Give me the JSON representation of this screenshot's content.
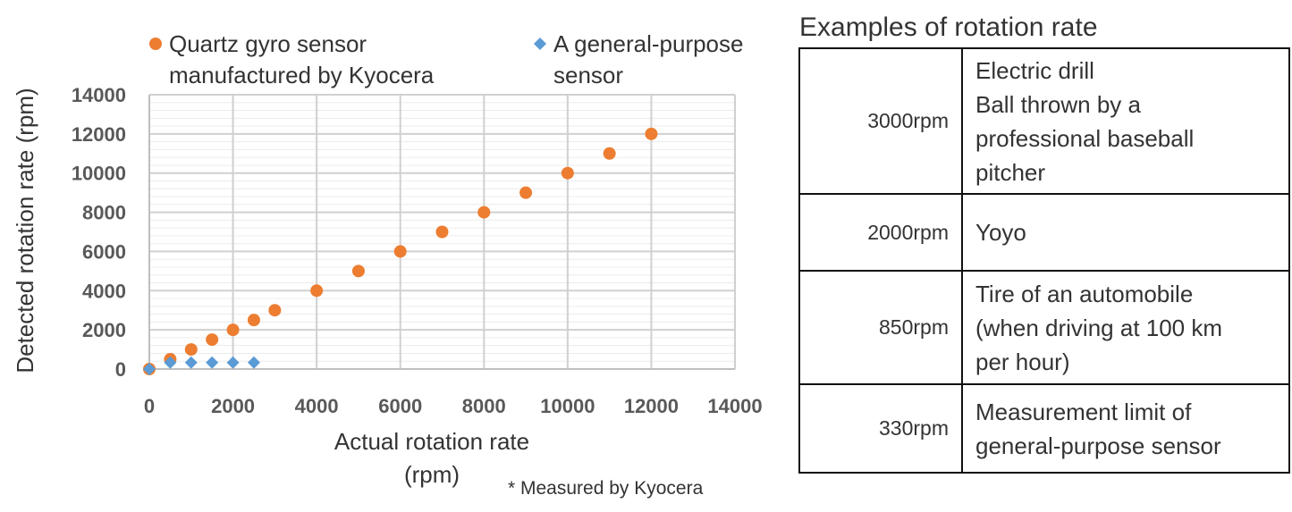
{
  "chart_data": {
    "type": "scatter",
    "xlabel": "Actual rotation rate (rpm)",
    "xlabel_lines": [
      "Actual rotation rate",
      "(rpm)"
    ],
    "ylabel": "Detected rotation rate (rpm)",
    "xlim": [
      0,
      14000
    ],
    "ylim": [
      0,
      14000
    ],
    "x_ticks": [
      "0",
      "2000",
      "4000",
      "6000",
      "8000",
      "10000",
      "12000",
      "14000"
    ],
    "y_ticks": [
      "0",
      "2000",
      "4000",
      "6000",
      "8000",
      "10000",
      "12000",
      "14000"
    ],
    "grid": true,
    "legend_position": "top",
    "note": "* Measured by Kyocera",
    "series": [
      {
        "name": "Quartz gyro sensor manufactured by Kyocera",
        "name_lines": [
          "Quartz gyro sensor",
          "manufactured by Kyocera"
        ],
        "color": "#ED7D31",
        "marker": "circle",
        "x": [
          0,
          500,
          1000,
          1500,
          2000,
          2500,
          3000,
          4000,
          5000,
          6000,
          7000,
          8000,
          9000,
          10000,
          11000,
          12000
        ],
        "y": [
          0,
          500,
          1000,
          1500,
          2000,
          2500,
          3000,
          4000,
          5000,
          6000,
          7000,
          8000,
          9000,
          10000,
          11000,
          12000
        ]
      },
      {
        "name": "A general-purpose sensor",
        "name_lines": [
          "A general-purpose",
          "sensor"
        ],
        "color": "#5B9BD5",
        "marker": "diamond",
        "x": [
          0,
          500,
          1000,
          1500,
          2000,
          2500
        ],
        "y": [
          0,
          330,
          330,
          330,
          330,
          330
        ]
      }
    ]
  },
  "table": {
    "title": "Examples of rotation rate",
    "rows": [
      {
        "rate": "3000rpm",
        "lines": [
          "Electric drill",
          "Ball thrown by a",
          "professional baseball",
          "pitcher"
        ]
      },
      {
        "rate": "2000rpm",
        "lines": [
          "Yoyo"
        ]
      },
      {
        "rate": "850rpm",
        "lines": [
          "Tire of an automobile",
          "(when driving at 100 km",
          "per hour)"
        ]
      },
      {
        "rate": "330rpm",
        "lines": [
          "Measurement limit of",
          "general-purpose sensor"
        ]
      }
    ]
  }
}
